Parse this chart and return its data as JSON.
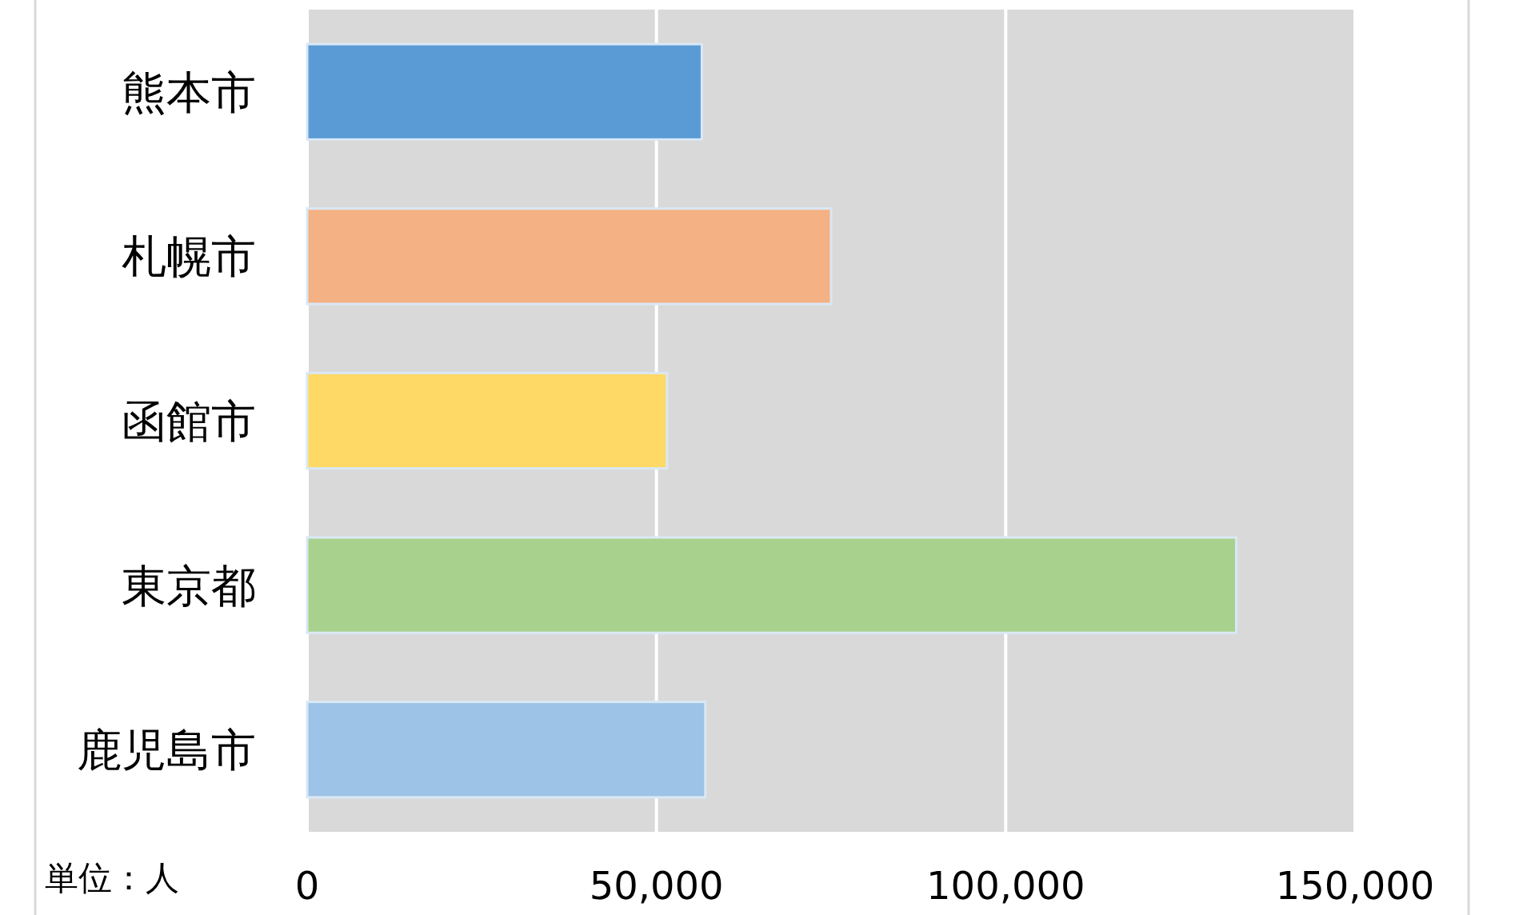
{
  "chart_data": {
    "type": "bar",
    "orientation": "horizontal",
    "categories": [
      "熊本市",
      "札幌市",
      "函館市",
      "東京都",
      "鹿児島市"
    ],
    "values": [
      56500,
      75000,
      51500,
      133000,
      57000
    ],
    "colors": [
      "#5b9bd5",
      "#f4b183",
      "#ffd966",
      "#a9d18e",
      "#9dc3e6"
    ],
    "xlim": [
      0,
      150000
    ],
    "xticks": [
      0,
      {
        "value": 50000,
        "label": "50,000"
      },
      {
        "value": 100000,
        "label": "100,000"
      },
      {
        "value": 150000,
        "label": "150,000"
      }
    ],
    "grid": "x",
    "annotations": [
      "単位：人"
    ]
  }
}
